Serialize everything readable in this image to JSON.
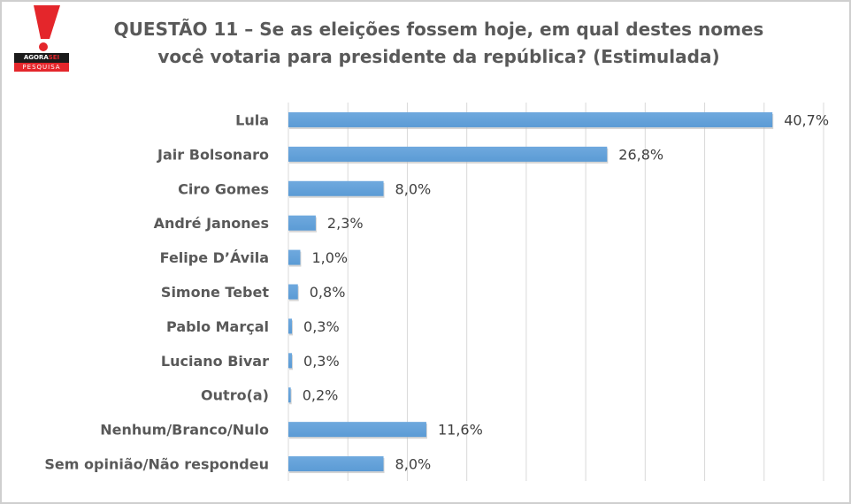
{
  "logo": {
    "brand_a": "AGORA",
    "brand_b": "SEI",
    "sub": "PESQUISA"
  },
  "chart_data": {
    "type": "bar",
    "orientation": "horizontal",
    "title_line1": "QUESTÃO 11 – Se as eleições fossem hoje, em qual destes nomes",
    "title_line2": "você votaria para presidente da república? (Estimulada)",
    "categories": [
      "Lula",
      "Jair Bolsonaro",
      "Ciro Gomes",
      "André Janones",
      "Felipe D’Ávila",
      "Simone Tebet",
      "Pablo Marçal",
      "Luciano Bivar",
      "Outro(a)",
      "Nenhum/Branco/Nulo",
      "Sem opinião/Não respondeu"
    ],
    "values": [
      40.7,
      26.8,
      8.0,
      2.3,
      1.0,
      0.8,
      0.3,
      0.3,
      0.2,
      11.6,
      8.0
    ],
    "value_labels": [
      "40,7%",
      "26,8%",
      "8,0%",
      "2,3%",
      "1,0%",
      "0,8%",
      "0,3%",
      "0,3%",
      "0,2%",
      "11,6%",
      "8,0%"
    ],
    "xlim": [
      0,
      45
    ],
    "grid": true,
    "bar_color": "#5b9bd5"
  }
}
